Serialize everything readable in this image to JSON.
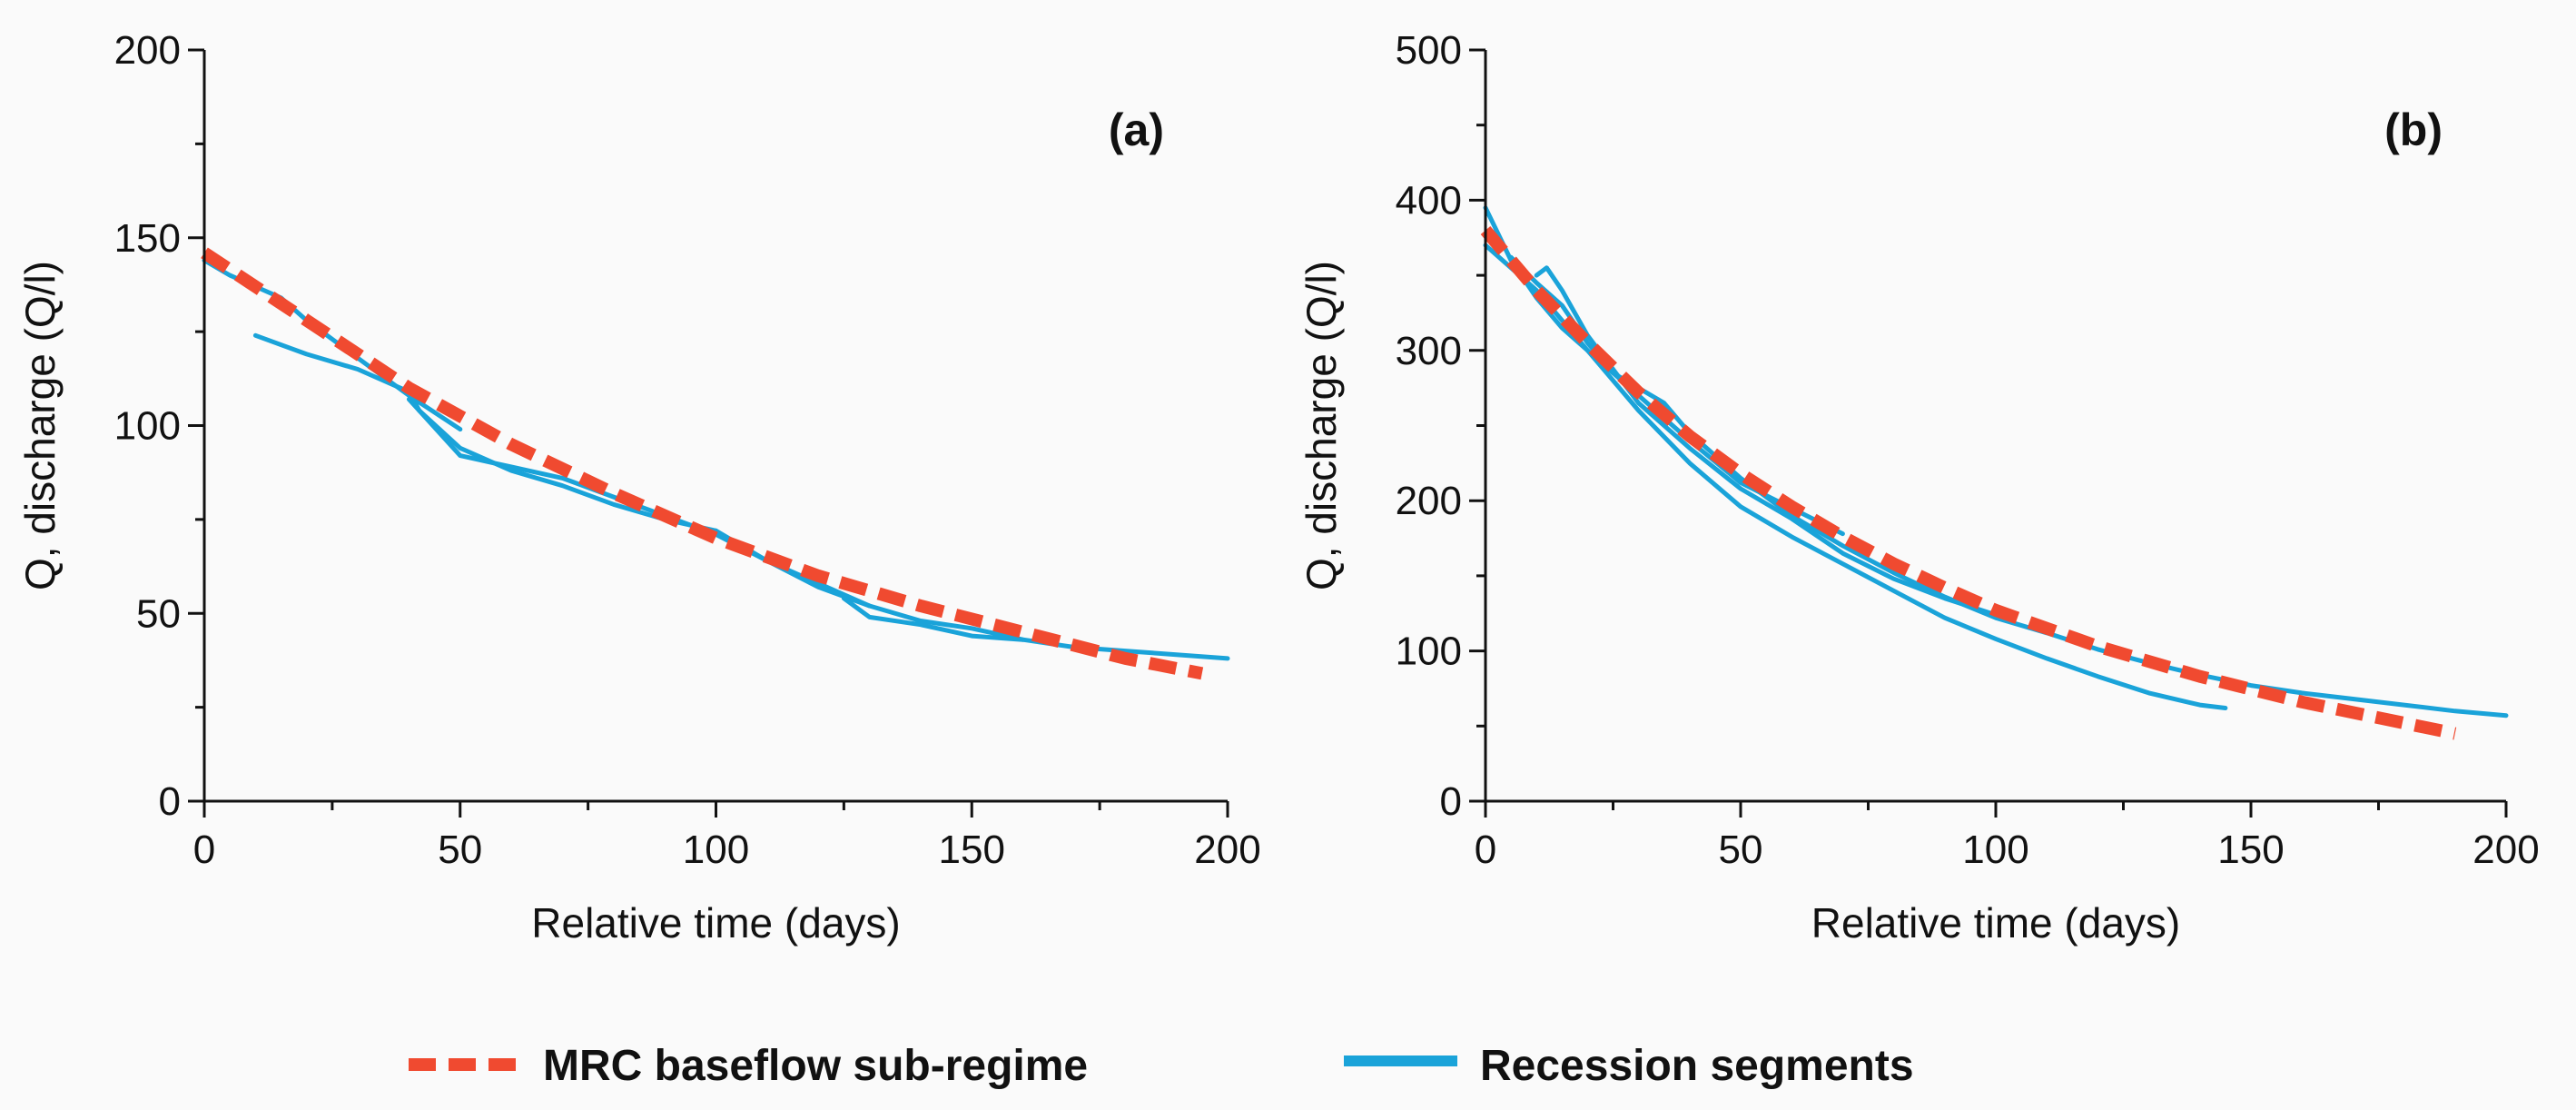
{
  "colors": {
    "mrc": "#f04a30",
    "recession": "#1aa3d9",
    "axis": "#111111"
  },
  "legend": {
    "mrc_label": "MRC baseflow sub-regime",
    "recession_label": "Recession segments",
    "placement": "bottom"
  },
  "chart_data": [
    {
      "type": "line",
      "panel_label": "(a)",
      "xlabel": "Relative time (days)",
      "ylabel": "Q, discharge (Q/l)",
      "xlim": [
        0,
        200
      ],
      "ylim": [
        0,
        200
      ],
      "xticks": [
        0,
        50,
        100,
        150,
        200
      ],
      "yticks": [
        0,
        50,
        100,
        150,
        200
      ],
      "x_minor_step": 25,
      "y_minor_step": 25,
      "grid": false,
      "series": [
        {
          "name": "MRC baseflow sub-regime",
          "style": "dashed",
          "x": [
            0,
            20,
            40,
            60,
            80,
            100,
            120,
            140,
            160,
            180,
            195
          ],
          "y": [
            146,
            128,
            110,
            95,
            82,
            70,
            60,
            52,
            45,
            38,
            34
          ]
        },
        {
          "name": "Recession segments",
          "style": "solid",
          "x": [
            0,
            5,
            10,
            15,
            20,
            30,
            40,
            50
          ],
          "y": [
            144,
            140,
            137,
            134,
            128,
            118,
            108,
            99
          ]
        },
        {
          "name": "Recession segments",
          "style": "solid",
          "x": [
            10,
            20,
            30,
            40,
            42,
            50,
            60,
            70,
            80,
            90,
            100
          ],
          "y": [
            124,
            119,
            115,
            109,
            104,
            94,
            88,
            84,
            79,
            75,
            72
          ]
        },
        {
          "name": "Recession segments",
          "style": "solid",
          "x": [
            40,
            50,
            60,
            70,
            80,
            90,
            100,
            110,
            120,
            130
          ],
          "y": [
            107,
            92,
            89,
            86,
            81,
            76,
            71,
            64,
            58,
            52
          ]
        },
        {
          "name": "Recession segments",
          "style": "solid",
          "x": [
            100,
            110,
            120,
            130,
            140,
            150,
            160,
            170,
            180,
            190,
            200
          ],
          "y": [
            72,
            64,
            57,
            52,
            48,
            46,
            43,
            41,
            40,
            39,
            38
          ]
        },
        {
          "name": "Recession segments",
          "style": "solid",
          "x": [
            125,
            130,
            140,
            150,
            160
          ],
          "y": [
            54,
            49,
            47,
            44,
            43
          ]
        }
      ]
    },
    {
      "type": "line",
      "panel_label": "(b)",
      "xlabel": "Relative time (days)",
      "ylabel": "Q, discharge (Q/l)",
      "xlim": [
        0,
        200
      ],
      "ylim": [
        0,
        500
      ],
      "xticks": [
        0,
        50,
        100,
        150,
        200
      ],
      "yticks": [
        0,
        100,
        200,
        300,
        400,
        500
      ],
      "x_minor_step": 25,
      "y_minor_step": 50,
      "grid": false,
      "series": [
        {
          "name": "MRC baseflow sub-regime",
          "style": "dashed",
          "x": [
            0,
            10,
            20,
            30,
            40,
            50,
            60,
            70,
            80,
            90,
            100,
            120,
            140,
            160,
            180,
            190
          ],
          "y": [
            380,
            340,
            305,
            272,
            243,
            218,
            196,
            176,
            158,
            142,
            127,
            103,
            83,
            66,
            52,
            45
          ]
        },
        {
          "name": "Recession segments",
          "style": "solid",
          "x": [
            0,
            5,
            10,
            15,
            20,
            25,
            30,
            40,
            50,
            60,
            70,
            80,
            90,
            100,
            110,
            120,
            130,
            140,
            145
          ],
          "y": [
            395,
            360,
            335,
            315,
            300,
            280,
            260,
            225,
            196,
            176,
            158,
            140,
            122,
            108,
            95,
            83,
            72,
            64,
            62
          ]
        },
        {
          "name": "Recession segments",
          "style": "solid",
          "x": [
            5,
            10,
            15,
            20,
            25,
            30,
            35,
            40,
            50,
            60,
            70,
            80,
            90,
            100,
            110,
            120,
            130,
            140,
            150,
            160,
            170,
            180,
            190,
            200
          ],
          "y": [
            362,
            345,
            330,
            305,
            285,
            275,
            265,
            245,
            215,
            190,
            170,
            152,
            136,
            122,
            112,
            101,
            92,
            84,
            77,
            72,
            68,
            64,
            60,
            57
          ]
        },
        {
          "name": "Recession segments",
          "style": "solid",
          "x": [
            10,
            12,
            15,
            20,
            30,
            40,
            50,
            60,
            70,
            80,
            90,
            100
          ],
          "y": [
            350,
            355,
            340,
            310,
            265,
            235,
            208,
            188,
            165,
            148,
            135,
            124
          ]
        },
        {
          "name": "Recession segments",
          "style": "solid",
          "x": [
            0,
            10,
            20,
            30,
            40,
            50,
            60,
            70
          ],
          "y": [
            370,
            340,
            300,
            270,
            240,
            212,
            195,
            178
          ]
        }
      ]
    }
  ]
}
